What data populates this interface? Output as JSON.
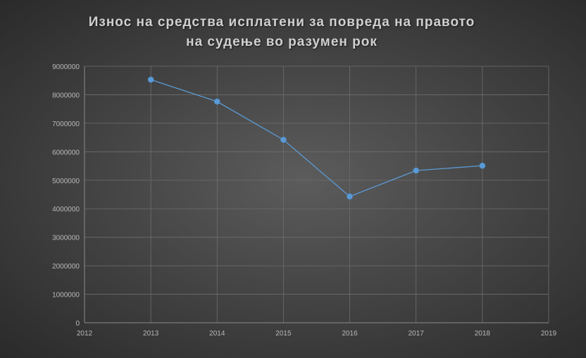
{
  "chart_data": {
    "type": "scatter",
    "title_lines": [
      "Износ на средства исплатени за повреда на правото",
      "на судење во разумен рок"
    ],
    "x": [
      2013,
      2014,
      2015,
      2016,
      2017,
      2018
    ],
    "y": [
      8530000,
      7760000,
      6420000,
      4430000,
      5340000,
      5510000
    ],
    "xlim": [
      2012,
      2019
    ],
    "ylim": [
      0,
      9000000
    ],
    "x_ticks": [
      "2012",
      "2013",
      "2014",
      "2015",
      "2016",
      "2017",
      "2018",
      "2019"
    ],
    "y_ticks": [
      "0",
      "1000000",
      "2000000",
      "3000000",
      "4000000",
      "5000000",
      "6000000",
      "7000000",
      "8000000",
      "9000000"
    ],
    "grid": true,
    "line_color": "#5b9bd5",
    "marker_color": "#5b9bd5"
  }
}
